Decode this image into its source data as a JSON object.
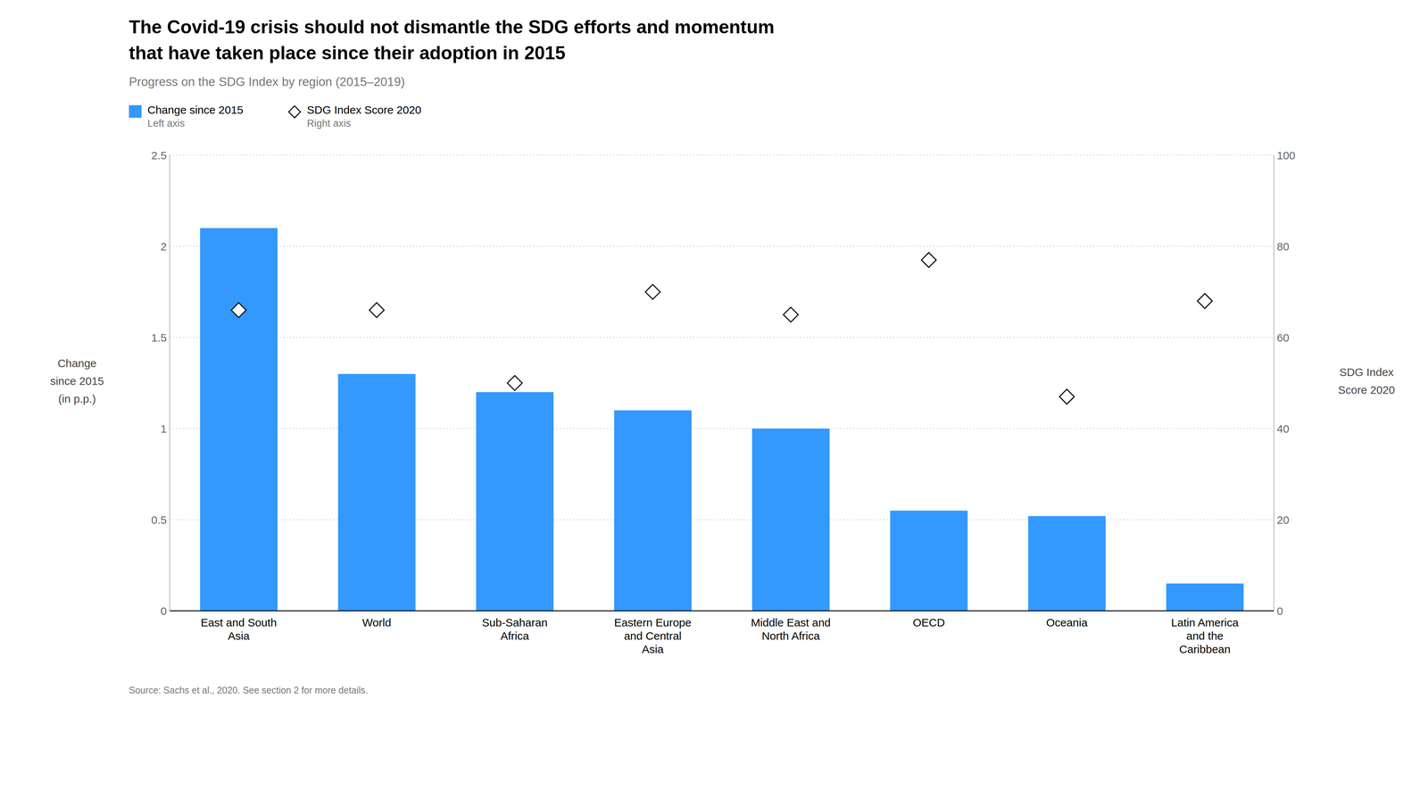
{
  "chart_data": {
    "type": "bar",
    "title": "The Covid-19 crisis should not dismantle the SDG efforts and momentum\nthat have taken place since their adoption in 2015",
    "subtitle": "Progress on the SDG Index by region (2015–2019)",
    "categories": [
      "East and South\nAsia",
      "World",
      "Sub-Saharan\nAfrica",
      "Eastern Europe\nand Central\nAsia",
      "Middle East and\nNorth Africa",
      "OECD",
      "Oceania",
      "Latin America\nand the\nCaribbean"
    ],
    "series": [
      {
        "name": "Change since 2015",
        "legend_note": "Left axis",
        "type": "bar",
        "color": "#3399FF",
        "values": [
          2.1,
          1.3,
          1.2,
          1.1,
          1.0,
          0.55,
          0.52,
          0.15
        ]
      },
      {
        "name": "SDG Index Score 2020",
        "legend_note": "Right axis",
        "type": "scatter",
        "marker": "diamond",
        "color": "#111111",
        "axis": "y2",
        "values": [
          66,
          66,
          50,
          70,
          65,
          77,
          47,
          68
        ]
      }
    ],
    "ylim": [
      0,
      2.5
    ],
    "yticks": [
      0,
      0.5,
      1,
      1.5,
      2,
      2.5
    ],
    "y2lim": [
      0,
      100
    ],
    "y2ticks": [
      0,
      20,
      40,
      60,
      80,
      100
    ],
    "ylabel": "Change\nsince 2015\n(in p.p.)",
    "y2label": "SDG Index\nScore 2020",
    "source": "Source: Sachs et al., 2020. See section 2 for more details.",
    "grid": true,
    "legend": "top"
  }
}
